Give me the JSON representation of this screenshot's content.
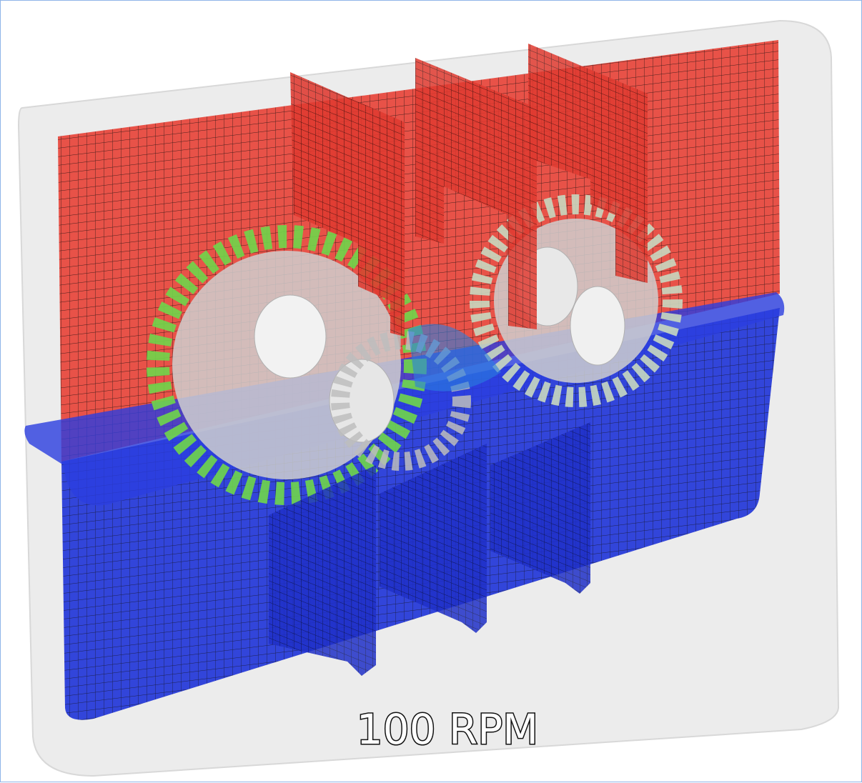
{
  "caption": "100 RPM"
}
